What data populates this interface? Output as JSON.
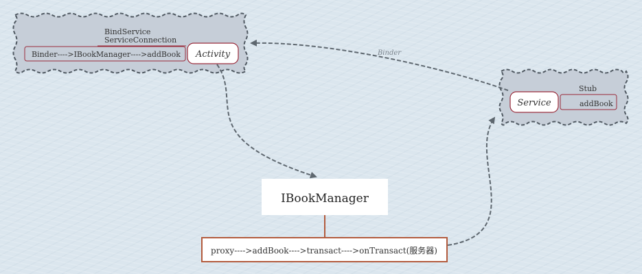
{
  "activity_cluster": {
    "bind_service": "BindService",
    "service_connection": "ServiceConnection",
    "binder_chain": "Binder---->IBookManager---->addBook",
    "activity_label": "Activity"
  },
  "service_cluster": {
    "service_label": "Service",
    "stub": "Stub",
    "add_book": "addBook"
  },
  "binder_edge_label": "Binder",
  "ibookmanager": {
    "label": "IBookManager"
  },
  "proxy_box": {
    "label": "proxy---->addBook---->transact---->onTransact(服务器)"
  },
  "colors": {
    "cluster_fill": "#c6ced8",
    "cluster_stroke": "#4f5861",
    "node_stroke": "#9a2a3a",
    "proxy_stroke": "#b25a3c",
    "edge": "#5e676f",
    "edge_label": "#7a838c"
  }
}
